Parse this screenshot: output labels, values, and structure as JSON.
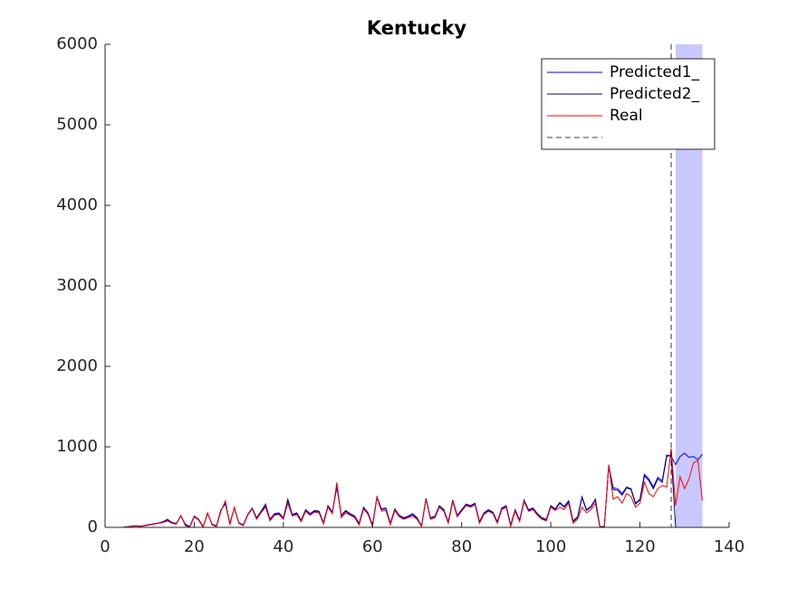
{
  "chart_data": {
    "type": "line",
    "title": "Kentucky",
    "x": [
      1,
      2,
      3,
      4,
      5,
      6,
      7,
      8,
      9,
      10,
      11,
      12,
      13,
      14,
      15,
      16,
      17,
      18,
      19,
      20,
      21,
      22,
      23,
      24,
      25,
      26,
      27,
      28,
      29,
      30,
      31,
      32,
      33,
      34,
      35,
      36,
      37,
      38,
      39,
      40,
      41,
      42,
      43,
      44,
      45,
      46,
      47,
      48,
      49,
      50,
      51,
      52,
      53,
      54,
      55,
      56,
      57,
      58,
      59,
      60,
      61,
      62,
      63,
      64,
      65,
      66,
      67,
      68,
      69,
      70,
      71,
      72,
      73,
      74,
      75,
      76,
      77,
      78,
      79,
      80,
      81,
      82,
      83,
      84,
      85,
      86,
      87,
      88,
      89,
      90,
      91,
      92,
      93,
      94,
      95,
      96,
      97,
      98,
      99,
      100,
      101,
      102,
      103,
      104,
      105,
      106,
      107,
      108,
      109,
      110,
      111,
      112,
      113,
      114,
      115,
      116,
      117,
      118,
      119,
      120,
      121,
      122,
      123,
      124,
      125,
      126,
      127,
      128,
      129,
      130,
      131,
      132,
      133,
      134
    ],
    "series": [
      {
        "name": "Predicted1_",
        "color": "#0000ff",
        "values": [
          0,
          0,
          0,
          0,
          8,
          15,
          20,
          15,
          25,
          35,
          45,
          55,
          70,
          100,
          60,
          50,
          140,
          40,
          10,
          140,
          100,
          10,
          170,
          40,
          20,
          220,
          290,
          50,
          240,
          60,
          30,
          160,
          240,
          120,
          200,
          290,
          100,
          170,
          180,
          120,
          350,
          160,
          180,
          90,
          220,
          170,
          210,
          200,
          60,
          270,
          190,
          500,
          150,
          210,
          170,
          140,
          50,
          250,
          180,
          30,
          380,
          230,
          240,
          50,
          230,
          150,
          120,
          140,
          170,
          120,
          20,
          360,
          120,
          140,
          270,
          220,
          70,
          340,
          150,
          220,
          290,
          270,
          300,
          70,
          180,
          220,
          190,
          70,
          240,
          270,
          30,
          220,
          90,
          340,
          220,
          240,
          170,
          120,
          100,
          270,
          230,
          310,
          260,
          330,
          80,
          130,
          380,
          220,
          260,
          350,
          10,
          10,
          760,
          490,
          480,
          420,
          500,
          480,
          300,
          350,
          660,
          600,
          500,
          620,
          580,
          900,
          880,
          780,
          880,
          920,
          870,
          880,
          840,
          910
        ]
      },
      {
        "name": "Predicted2_",
        "color": "#000080",
        "values": [
          0,
          0,
          0,
          0,
          6,
          12,
          18,
          12,
          22,
          32,
          42,
          52,
          65,
          95,
          55,
          45,
          145,
          35,
          5,
          135,
          95,
          5,
          175,
          35,
          15,
          210,
          300,
          45,
          245,
          55,
          25,
          155,
          235,
          110,
          190,
          270,
          90,
          160,
          170,
          110,
          320,
          150,
          170,
          80,
          210,
          160,
          200,
          190,
          50,
          260,
          180,
          520,
          140,
          200,
          160,
          130,
          40,
          240,
          170,
          20,
          375,
          220,
          230,
          40,
          220,
          140,
          110,
          130,
          160,
          110,
          15,
          355,
          110,
          130,
          260,
          210,
          60,
          330,
          140,
          210,
          280,
          260,
          290,
          60,
          170,
          210,
          180,
          60,
          230,
          260,
          20,
          210,
          80,
          330,
          210,
          230,
          160,
          110,
          90,
          260,
          220,
          300,
          250,
          320,
          70,
          120,
          370,
          210,
          250,
          340,
          5,
          5,
          770,
          470,
          460,
          400,
          490,
          470,
          290,
          340,
          640,
          580,
          480,
          600,
          560,
          880,
          900,
          0,
          0,
          0,
          0,
          0,
          0,
          0
        ]
      },
      {
        "name": "Real",
        "color": "#ff0000",
        "values": [
          0,
          0,
          0,
          0,
          5,
          10,
          15,
          10,
          20,
          30,
          40,
          50,
          60,
          80,
          50,
          40,
          150,
          20,
          0,
          130,
          90,
          0,
          180,
          30,
          10,
          200,
          330,
          30,
          250,
          50,
          20,
          150,
          230,
          100,
          180,
          250,
          80,
          150,
          160,
          100,
          300,
          140,
          160,
          70,
          200,
          150,
          190,
          180,
          40,
          250,
          170,
          560,
          120,
          180,
          150,
          120,
          30,
          230,
          160,
          10,
          370,
          200,
          210,
          30,
          210,
          130,
          100,
          120,
          140,
          100,
          10,
          350,
          100,
          120,
          250,
          200,
          50,
          320,
          130,
          200,
          270,
          250,
          280,
          50,
          160,
          200,
          170,
          50,
          220,
          250,
          10,
          200,
          70,
          320,
          200,
          220,
          150,
          100,
          80,
          250,
          210,
          250,
          220,
          300,
          50,
          100,
          250,
          180,
          220,
          300,
          0,
          0,
          780,
          350,
          380,
          300,
          420,
          380,
          250,
          300,
          560,
          420,
          380,
          480,
          520,
          500,
          980,
          270,
          630,
          480,
          600,
          800,
          830,
          330
        ]
      }
    ],
    "band": {
      "x": [
        128,
        134
      ],
      "y": [
        0,
        6000
      ],
      "color": "#c8c8ff"
    },
    "vline": {
      "x": 127,
      "color": "#000000"
    },
    "xlim": [
      0,
      140
    ],
    "xticks": [
      0,
      20,
      40,
      60,
      80,
      100,
      120,
      140
    ],
    "ylim": [
      0,
      6000
    ],
    "yticks": [
      0,
      1000,
      2000,
      3000,
      4000,
      5000,
      6000
    ],
    "legend": "northeast"
  }
}
